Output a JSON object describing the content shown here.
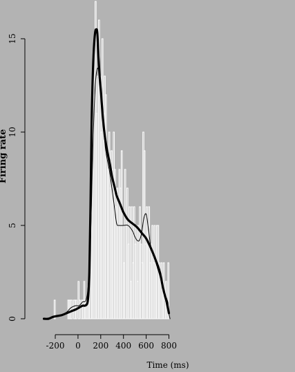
{
  "chart_data": {
    "type": "bar",
    "xlabel": "Time (ms)",
    "ylabel": "Firing rate",
    "xlim": [
      -300,
      810
    ],
    "ylim": [
      0,
      17
    ],
    "x_ticks": [
      -200,
      0,
      200,
      400,
      600,
      800
    ],
    "x_tick_labels": [
      "-200",
      "0",
      "200",
      "400",
      "600",
      "800"
    ],
    "y_ticks": [
      0,
      5,
      10,
      15
    ],
    "y_tick_labels": [
      "0",
      "5",
      "10",
      "15"
    ],
    "grid": false,
    "colors": {
      "background": "#b3b3b3",
      "bars": "#ffffff",
      "curves": "#000000"
    },
    "histogram": {
      "bin_width": 10,
      "bin_starts": [
        -210,
        -90,
        -80,
        -70,
        -60,
        -50,
        -40,
        -30,
        -20,
        -10,
        0,
        10,
        20,
        30,
        40,
        50,
        60,
        70,
        80,
        90,
        100,
        110,
        120,
        130,
        140,
        150,
        160,
        170,
        180,
        190,
        200,
        210,
        220,
        230,
        240,
        250,
        260,
        270,
        280,
        290,
        300,
        310,
        320,
        330,
        340,
        350,
        360,
        370,
        380,
        390,
        400,
        410,
        420,
        430,
        440,
        450,
        460,
        470,
        480,
        490,
        500,
        510,
        520,
        530,
        540,
        550,
        560,
        570,
        580,
        590,
        600,
        610,
        620,
        630,
        640,
        650,
        660,
        670,
        680,
        690,
        700,
        710,
        720,
        730,
        740,
        750,
        760,
        770,
        780,
        790
      ],
      "values": [
        1,
        1,
        1,
        1,
        1,
        0,
        1,
        1,
        1,
        0,
        2,
        1,
        0,
        1,
        1,
        2,
        1,
        1,
        1,
        1,
        3,
        6,
        8,
        14,
        12,
        17,
        11,
        13,
        16,
        13,
        10,
        15,
        11,
        13,
        12,
        9,
        8,
        10,
        7,
        9,
        8,
        10,
        8,
        6,
        7,
        5,
        8,
        7,
        9,
        5,
        3,
        8,
        5,
        7,
        4,
        6,
        2,
        6,
        3,
        6,
        4,
        5,
        2,
        5,
        6,
        4,
        3,
        10,
        9,
        4,
        6,
        5,
        6,
        3,
        4,
        5,
        3,
        5,
        3,
        5,
        5,
        3,
        2,
        3,
        2,
        3,
        1,
        2,
        1,
        3
      ]
    },
    "series": [
      {
        "style": "thick",
        "x": [
          -300,
          -260,
          -220,
          -180,
          -140,
          -100,
          -60,
          -20,
          10,
          40,
          60,
          80,
          90,
          100,
          110,
          120,
          130,
          140,
          150,
          160,
          170,
          180,
          190,
          200,
          220,
          240,
          260,
          280,
          300,
          320,
          340,
          360,
          380,
          400,
          440,
          480,
          520,
          560,
          600,
          640,
          680,
          720,
          750,
          780,
          800
        ],
        "y": [
          0,
          0,
          0.1,
          0.15,
          0.2,
          0.3,
          0.4,
          0.5,
          0.6,
          0.7,
          0.7,
          0.8,
          1.2,
          2.5,
          6,
          10.5,
          13,
          14.5,
          15.3,
          15.5,
          15.3,
          14,
          13,
          12.3,
          10.7,
          9.6,
          8.9,
          8.3,
          7.6,
          7.1,
          6.6,
          6.3,
          6,
          5.7,
          5.3,
          5.1,
          4.9,
          4.6,
          4.3,
          3.8,
          3.2,
          2.5,
          1.6,
          0.9,
          0.3
        ]
      },
      {
        "style": "thin",
        "x": [
          -300,
          -260,
          -220,
          -180,
          -140,
          -100,
          -60,
          -20,
          10,
          40,
          70,
          90,
          110,
          130,
          150,
          170,
          190,
          210,
          240,
          280,
          320,
          340,
          360,
          400,
          440,
          480,
          500,
          520,
          540,
          560,
          580,
          600,
          620,
          640,
          680,
          720,
          760,
          790,
          800,
          810
        ],
        "y": [
          0,
          0,
          0.1,
          0.15,
          0.2,
          0.35,
          0.6,
          0.7,
          0.7,
          0.9,
          1,
          1.8,
          4.2,
          9,
          12.3,
          13.4,
          13,
          11.7,
          9.2,
          7.8,
          6,
          5.1,
          5,
          5,
          5,
          4.7,
          4.4,
          4.2,
          4.2,
          4.6,
          5.4,
          5.6,
          4.8,
          3.9,
          3.1,
          2.3,
          1.4,
          0.9,
          0.3,
          0
        ]
      }
    ]
  }
}
